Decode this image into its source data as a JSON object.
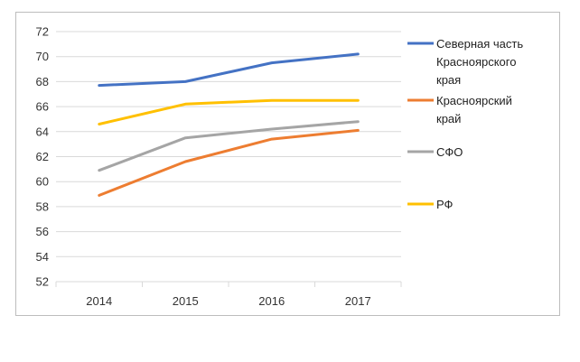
{
  "chart_data": {
    "type": "line",
    "title": "",
    "xlabel": "",
    "ylabel": "",
    "categories": [
      "2014",
      "2015",
      "2016",
      "2017"
    ],
    "ylim": [
      52,
      72
    ],
    "ytick_step": 2,
    "grid": "horizontal",
    "legend_position": "right",
    "series": [
      {
        "name": "Северная часть Красноярского края",
        "legend_lines": [
          "Северная часть",
          "Красноярского",
          "края"
        ],
        "color": "#4472C4",
        "values": [
          67.7,
          68.0,
          69.5,
          70.2
        ]
      },
      {
        "name": "Красноярский край",
        "legend_lines": [
          "Красноярский",
          "край"
        ],
        "color": "#ED7D31",
        "values": [
          58.9,
          61.6,
          63.4,
          64.1
        ]
      },
      {
        "name": "СФО",
        "legend_lines": [
          "СФО"
        ],
        "color": "#A5A5A5",
        "values": [
          60.9,
          63.5,
          64.2,
          64.8
        ]
      },
      {
        "name": "РФ",
        "legend_lines": [
          "РФ"
        ],
        "color": "#FFC000",
        "values": [
          64.6,
          66.2,
          66.5,
          66.5
        ]
      }
    ]
  }
}
